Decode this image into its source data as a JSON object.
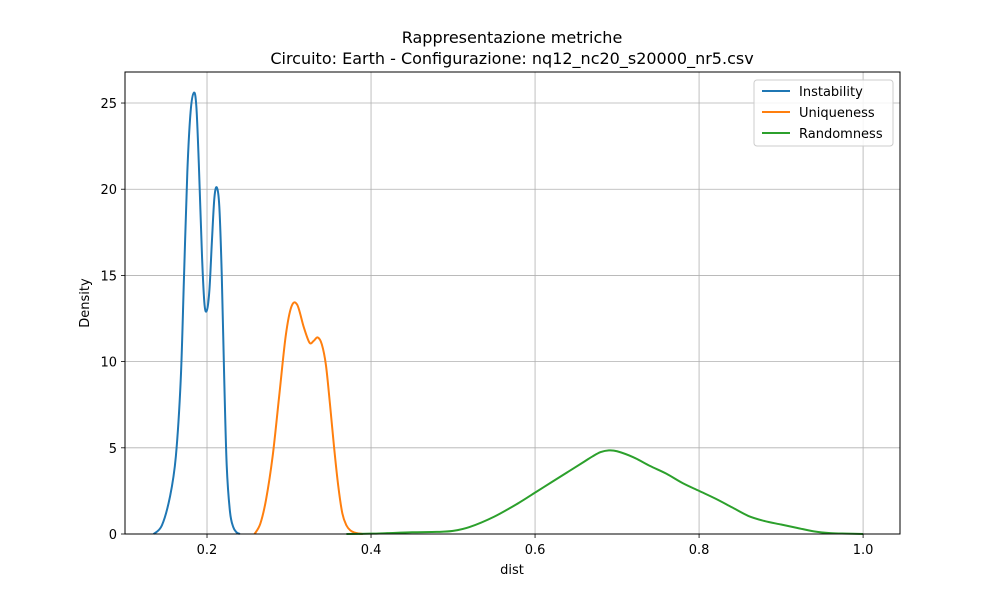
{
  "chart_data": {
    "type": "line",
    "title_line1": "Rappresentazione metriche",
    "title_line2": "Circuito: Earth - Configurazione: nq12_nc20_s20000_nr5.csv",
    "xlabel": "dist",
    "ylabel": "Density",
    "xlim": [
      0.1,
      1.045
    ],
    "ylim": [
      0,
      26.8
    ],
    "xticks": [
      0.2,
      0.4,
      0.6,
      0.8,
      1.0
    ],
    "xtick_labels": [
      "0.2",
      "0.4",
      "0.6",
      "0.8",
      "1.0"
    ],
    "yticks": [
      0,
      5,
      10,
      15,
      20,
      25
    ],
    "ytick_labels": [
      "0",
      "5",
      "10",
      "15",
      "20",
      "25"
    ],
    "grid": true,
    "legend_position": "top-right",
    "series": [
      {
        "name": "Instability",
        "color": "#1f77b4",
        "x": [
          0.135,
          0.145,
          0.155,
          0.162,
          0.168,
          0.172,
          0.176,
          0.18,
          0.184,
          0.187,
          0.19,
          0.194,
          0.197,
          0.2,
          0.203,
          0.206,
          0.209,
          0.212,
          0.215,
          0.218,
          0.221,
          0.224,
          0.228,
          0.232,
          0.236,
          0.24
        ],
        "y": [
          0.0,
          0.5,
          2.2,
          4.5,
          9.0,
          15.0,
          21.0,
          24.5,
          25.6,
          24.8,
          21.5,
          16.0,
          13.3,
          13.0,
          14.2,
          17.0,
          19.5,
          20.1,
          19.0,
          15.0,
          9.0,
          4.0,
          1.3,
          0.4,
          0.1,
          0.0
        ]
      },
      {
        "name": "Uniqueness",
        "color": "#ff7f0e",
        "x": [
          0.258,
          0.265,
          0.272,
          0.28,
          0.288,
          0.296,
          0.303,
          0.31,
          0.318,
          0.325,
          0.33,
          0.335,
          0.34,
          0.345,
          0.35,
          0.355,
          0.36,
          0.365,
          0.37,
          0.375,
          0.38,
          0.385,
          0.39
        ],
        "y": [
          0.0,
          0.6,
          2.0,
          4.5,
          8.0,
          11.5,
          13.2,
          13.3,
          12.0,
          11.1,
          11.2,
          11.4,
          11.0,
          9.8,
          7.5,
          5.0,
          2.8,
          1.2,
          0.5,
          0.2,
          0.08,
          0.03,
          0.0
        ]
      },
      {
        "name": "Randomness",
        "color": "#2ca02c",
        "x": [
          0.37,
          0.4,
          0.42,
          0.45,
          0.48,
          0.5,
          0.52,
          0.55,
          0.58,
          0.6,
          0.62,
          0.64,
          0.66,
          0.67,
          0.68,
          0.69,
          0.7,
          0.72,
          0.74,
          0.76,
          0.78,
          0.8,
          0.82,
          0.84,
          0.86,
          0.88,
          0.9,
          0.92,
          0.94,
          0.96,
          0.98,
          1.0
        ],
        "y": [
          0.0,
          0.02,
          0.05,
          0.1,
          0.12,
          0.18,
          0.4,
          1.0,
          1.8,
          2.4,
          3.0,
          3.6,
          4.2,
          4.5,
          4.75,
          4.85,
          4.8,
          4.45,
          3.95,
          3.5,
          2.95,
          2.5,
          2.05,
          1.55,
          1.05,
          0.75,
          0.55,
          0.35,
          0.15,
          0.05,
          0.02,
          0.0
        ]
      }
    ]
  }
}
